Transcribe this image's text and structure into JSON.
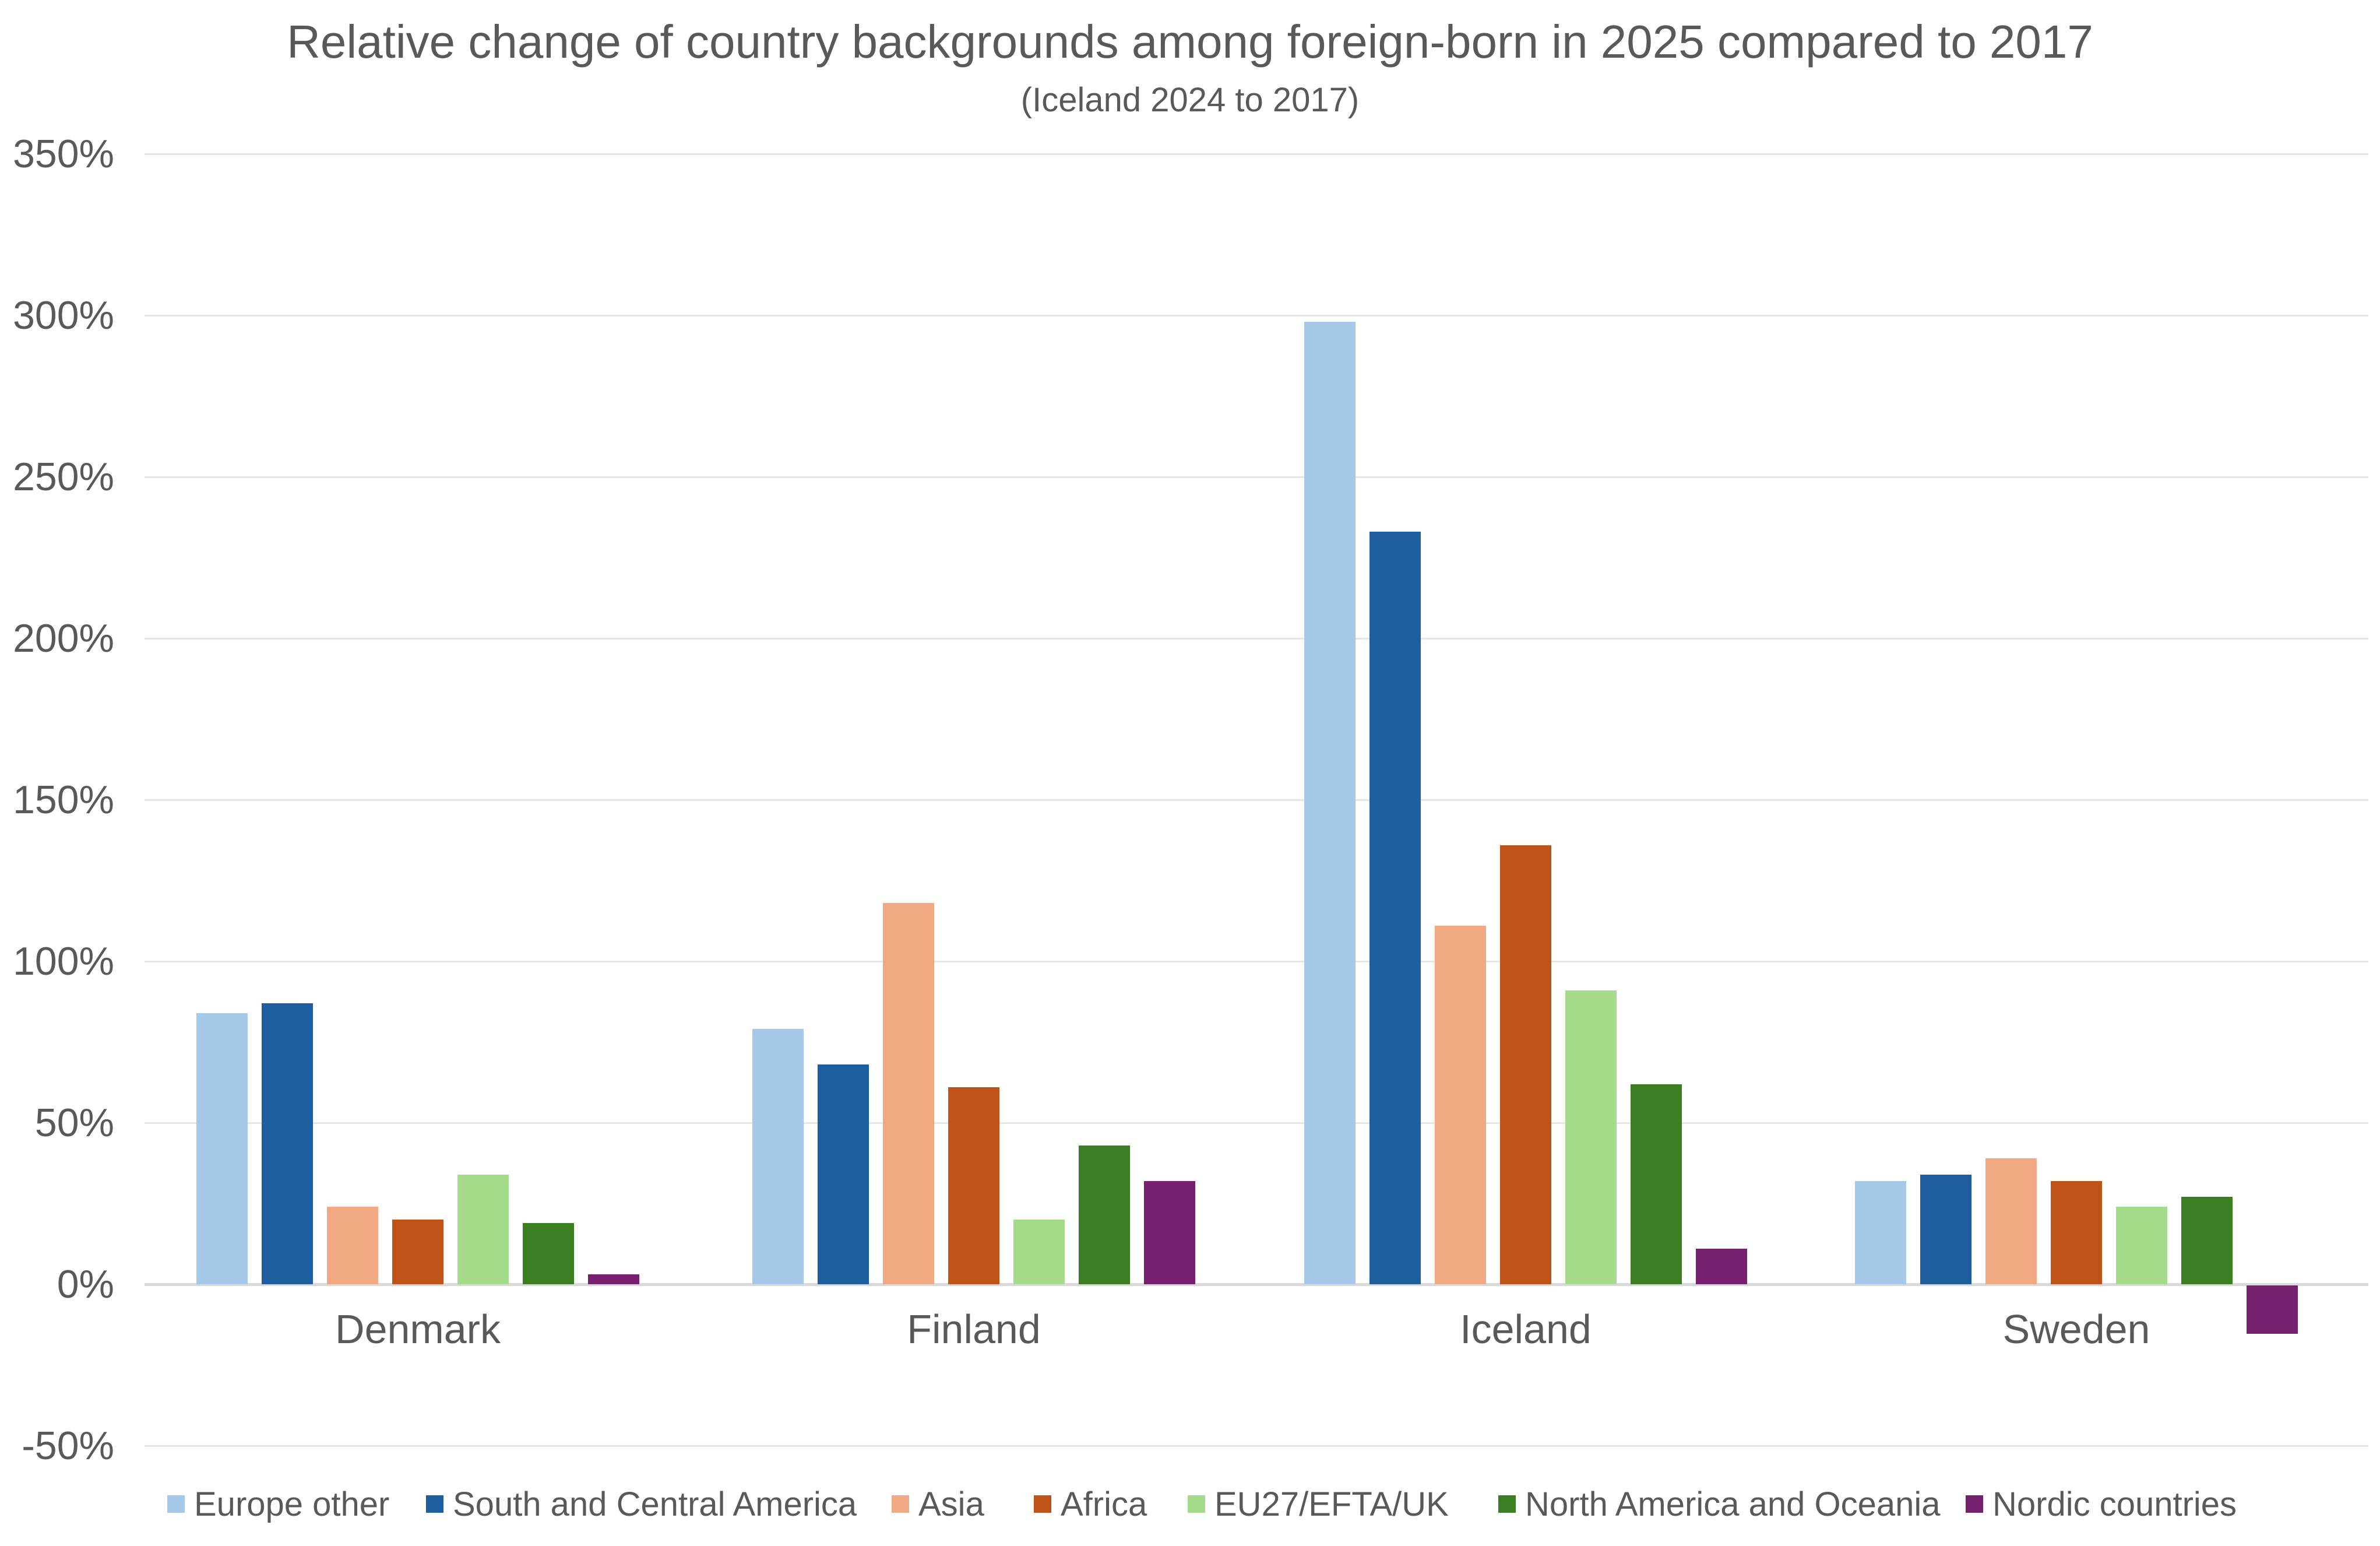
{
  "colors": {
    "text": "#595959",
    "gridline": "#e6e6e6",
    "axis_line": "#d9d9d9",
    "background": "#ffffff"
  },
  "chart_data": {
    "type": "bar",
    "title": "Relative change of country backgrounds among foreign-born in 2025 compared to 2017",
    "subtitle": "(Iceland 2024 to 2017)",
    "categories": [
      "Denmark",
      "Finland",
      "Iceland",
      "Sweden"
    ],
    "series": [
      {
        "name": "Europe other",
        "color": "#A6C8E9",
        "values": [
          84,
          79,
          298,
          32
        ]
      },
      {
        "name": "South and Central America",
        "color": "#1F5E9E",
        "values": [
          87,
          68,
          233,
          34
        ]
      },
      {
        "name": "Asia",
        "color": "#F1A983",
        "values": [
          24,
          118,
          111,
          39
        ]
      },
      {
        "name": "Africa",
        "color": "#C05317",
        "values": [
          20,
          61,
          136,
          32
        ]
      },
      {
        "name": "EU27/EFTA/UK",
        "color": "#A5DC8B",
        "values": [
          34,
          20,
          91,
          24
        ]
      },
      {
        "name": "North America and Oceania",
        "color": "#3B7D21",
        "values": [
          19,
          43,
          62,
          27
        ]
      },
      {
        "name": "Nordic countries",
        "color": "#762170",
        "values": [
          3,
          32,
          11,
          -15
        ]
      }
    ],
    "y_axis": {
      "min": -50,
      "max": 350,
      "step": 50,
      "tick_suffix": "%"
    },
    "y_ticks": [
      "-50%",
      "0%",
      "50%",
      "100%",
      "150%",
      "200%",
      "250%",
      "300%",
      "350%"
    ],
    "grid": true,
    "legend_position": "bottom",
    "unit": "percent"
  }
}
